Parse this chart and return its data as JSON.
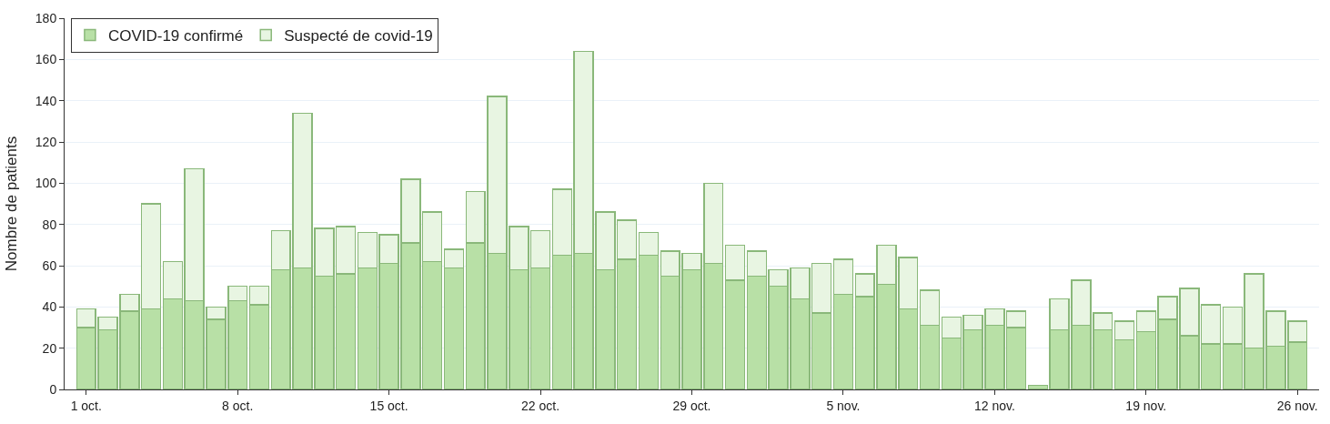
{
  "chart_data": {
    "type": "bar",
    "stacked": true,
    "ylabel": "Nombre de patients",
    "x": [
      "--10-01",
      "--10-02",
      "--10-03",
      "--10-04",
      "--10-05",
      "--10-06",
      "--10-07",
      "--10-08",
      "--10-09",
      "--10-10",
      "--10-11",
      "--10-12",
      "--10-13",
      "--10-14",
      "--10-15",
      "--10-16",
      "--10-17",
      "--10-18",
      "--10-19",
      "--10-20",
      "--10-21",
      "--10-22",
      "--10-23",
      "--10-24",
      "--10-25",
      "--10-26",
      "--10-27",
      "--10-28",
      "--10-29",
      "--10-30",
      "--10-31",
      "--11-01",
      "--11-02",
      "--11-03",
      "--11-04",
      "--11-05",
      "--11-06",
      "--11-07",
      "--11-08",
      "--11-09",
      "--11-10",
      "--11-11",
      "--11-12",
      "--11-13",
      "--11-14",
      "--11-15",
      "--11-16",
      "--11-17",
      "--11-18",
      "--11-19",
      "--11-20",
      "--11-21",
      "--11-22",
      "--11-23",
      "--11-24",
      "--11-25",
      "--11-26"
    ],
    "series": [
      {
        "name": "COVID-19 confirmé",
        "color": "#b8e0a6",
        "values": [
          30,
          29,
          38,
          39,
          44,
          43,
          34,
          43,
          41,
          58,
          59,
          55,
          56,
          59,
          61,
          71,
          62,
          59,
          71,
          66,
          58,
          59,
          65,
          66,
          58,
          63,
          65,
          55,
          58,
          61,
          53,
          55,
          50,
          44,
          37,
          46,
          45,
          51,
          39,
          31,
          25,
          29,
          31,
          30,
          2,
          29,
          31,
          29,
          24,
          28,
          34,
          26,
          22,
          22,
          20,
          21,
          23
        ]
      },
      {
        "name": "Suspecté de covid-19",
        "color": "#e8f5e2",
        "values": [
          9,
          6,
          8,
          51,
          18,
          64,
          6,
          7,
          9,
          19,
          75,
          23,
          23,
          17,
          14,
          31,
          24,
          9,
          25,
          76,
          21,
          18,
          32,
          98,
          28,
          19,
          11,
          12,
          8,
          39,
          17,
          12,
          8,
          15,
          24,
          17,
          11,
          19,
          25,
          17,
          10,
          7,
          8,
          8,
          null,
          15,
          22,
          8,
          9,
          10,
          11,
          23,
          19,
          18,
          36,
          17,
          10
        ]
      }
    ],
    "xlim": [
      "--09-30",
      "--11-27"
    ],
    "xticks": [
      {
        "value": "--10-01",
        "label": "1 oct."
      },
      {
        "value": "--10-08",
        "label": "8 oct."
      },
      {
        "value": "--10-15",
        "label": "15 oct."
      },
      {
        "value": "--10-22",
        "label": "22 oct."
      },
      {
        "value": "--10-29",
        "label": "29 oct."
      },
      {
        "value": "--11-05",
        "label": "5 nov."
      },
      {
        "value": "--11-12",
        "label": "12 nov."
      },
      {
        "value": "--11-19",
        "label": "19 nov."
      },
      {
        "value": "--11-26",
        "label": "26 nov."
      }
    ],
    "ylim": [
      0,
      180
    ],
    "yticks": [
      0,
      20,
      40,
      60,
      80,
      100,
      120,
      140,
      160,
      180
    ],
    "grid": "y",
    "legend": "top left"
  }
}
